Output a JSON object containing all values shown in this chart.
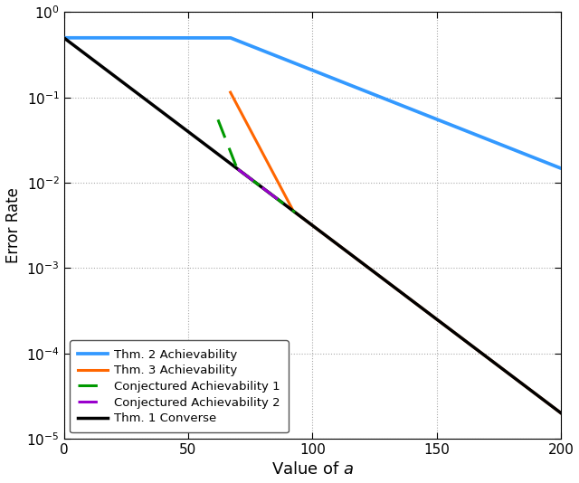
{
  "title": "",
  "xlabel": "Value of $a$",
  "ylabel": "Error Rate",
  "xlim": [
    0,
    200
  ],
  "ylim_log": [
    -5,
    0
  ],
  "xticks": [
    0,
    50,
    100,
    150,
    200
  ],
  "background_color": "#ffffff",
  "grid_color": "#aaaaaa",
  "line_blue_color": "#3399FF",
  "line_orange_color": "#FF6600",
  "line_green_color": "#009900",
  "line_purple_color": "#9900CC",
  "line_black_color": "#000000",
  "legend_labels": [
    "Thm. 2 Achievability",
    "Thm. 3 Achievability",
    "Conjectured Achievability 1",
    "Conjectured Achievability 2",
    "Thm. 1 Converse"
  ],
  "blue_flat_val": 0.5,
  "blue_flat_end": 67.0,
  "blue_slope": -0.0115,
  "orange_start_a": 67.0,
  "orange_start_val": 0.115,
  "orange_slope": -0.055,
  "green_start_a": 62.0,
  "green_start_val": 0.055,
  "green_slope": -0.075,
  "green_end_a": 93.0,
  "purple_start_a": 70.0,
  "purple_start_val": 0.012,
  "purple_slope": -0.12,
  "purple_end_a": 86.0,
  "black_start_val": 0.5,
  "black_end_val": 2e-05,
  "black_end_a": 200.0
}
